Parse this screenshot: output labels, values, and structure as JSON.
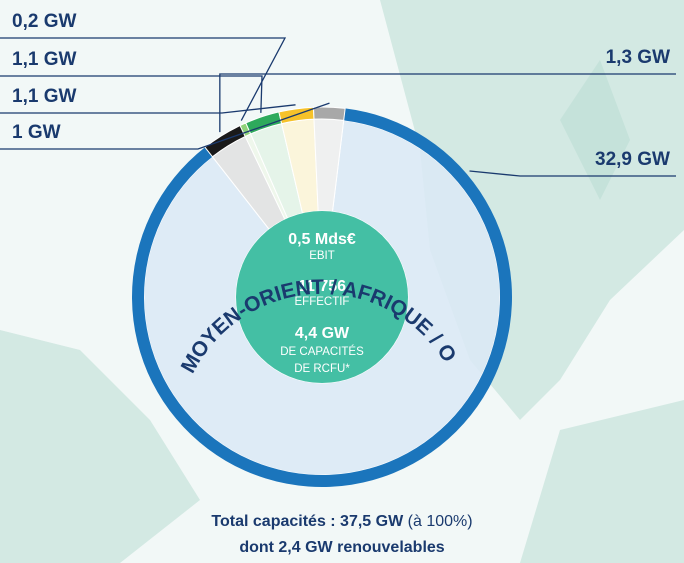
{
  "chart_data": {
    "type": "pie",
    "title": "ASIE / MOYEN-ORIENT / AFRIQUE / OCÉANIE",
    "values": [
      32.9,
      1.3,
      0.2,
      1.1,
      1.1,
      1
    ],
    "value_labels": [
      "32,9 GW",
      "1,3 GW",
      "0,2 GW",
      "1,1 GW",
      "1,1 GW",
      "1 GW"
    ],
    "colors": [
      "#1b75bc",
      "#1a1a1a",
      "#8fd27a",
      "#2eaa5c",
      "#f6c22a",
      "#a8a8a8"
    ],
    "center_stats": [
      {
        "figure": "0,5 Mds€",
        "caption": [
          "EBIT"
        ]
      },
      {
        "figure": "11 756",
        "caption": [
          "EFFECTIF"
        ]
      },
      {
        "figure": "4,4 GW",
        "caption": [
          "DE CAPACITÉS",
          "DE RCFU*"
        ]
      }
    ],
    "total": {
      "label": "Total capacités : 37,5 GW",
      "note": "(à 100%)",
      "renewables": "dont 2,4 GW renouvelables"
    }
  }
}
